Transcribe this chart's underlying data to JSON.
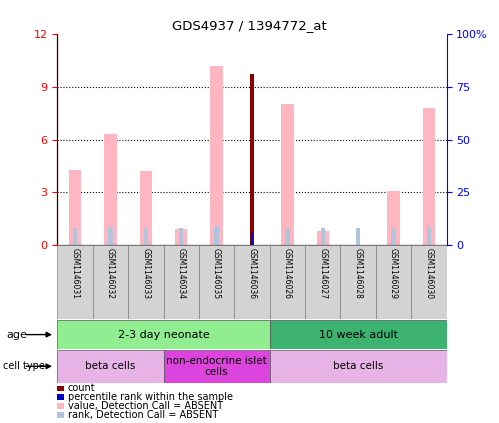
{
  "title": "GDS4937 / 1394772_at",
  "samples": [
    "GSM1146031",
    "GSM1146032",
    "GSM1146033",
    "GSM1146034",
    "GSM1146035",
    "GSM1146036",
    "GSM1146026",
    "GSM1146027",
    "GSM1146028",
    "GSM1146029",
    "GSM1146030"
  ],
  "value_absent": [
    4.3,
    6.3,
    4.2,
    0.9,
    10.2,
    null,
    8.0,
    0.8,
    null,
    3.1,
    7.8
  ],
  "rank_absent": [
    8.0,
    8.5,
    8.0,
    8.0,
    9.0,
    null,
    8.0,
    8.0,
    8.0,
    8.0,
    8.5
  ],
  "count": [
    null,
    null,
    null,
    null,
    null,
    9.7,
    null,
    null,
    null,
    null,
    null
  ],
  "percentile_rank": [
    null,
    null,
    null,
    null,
    null,
    5.8,
    null,
    null,
    null,
    null,
    null
  ],
  "value_absent_present": [
    null,
    null,
    null,
    null,
    null,
    9.7,
    null,
    null,
    null,
    null,
    null
  ],
  "ylim_left": [
    0,
    12
  ],
  "ylim_right": [
    0,
    100
  ],
  "yticks_left": [
    0,
    3,
    6,
    9,
    12
  ],
  "ytick_labels_left": [
    "0",
    "3",
    "6",
    "9",
    "12"
  ],
  "yticks_right": [
    0,
    25,
    50,
    75,
    100
  ],
  "ytick_labels_right": [
    "0",
    "25",
    "50",
    "75",
    "100%"
  ],
  "age_groups": [
    {
      "label": "2-3 day neonate",
      "start": 0,
      "end": 6,
      "color": "#90ee90"
    },
    {
      "label": "10 week adult",
      "start": 6,
      "end": 11,
      "color": "#3cb371"
    }
  ],
  "cell_groups": [
    {
      "label": "beta cells",
      "start": 0,
      "end": 3,
      "color": "#e8b4e8"
    },
    {
      "label": "non-endocrine islet\ncells",
      "start": 3,
      "end": 6,
      "color": "#dd44dd"
    },
    {
      "label": "beta cells",
      "start": 6,
      "end": 11,
      "color": "#e8b4e8"
    }
  ],
  "color_value_absent": "#ffb6c1",
  "color_rank_absent": "#b0c4de",
  "color_count": "#8b0000",
  "color_percentile": "#0000cd",
  "legend_items": [
    {
      "label": "count",
      "color": "#8b0000"
    },
    {
      "label": "percentile rank within the sample",
      "color": "#0000cd"
    },
    {
      "label": "value, Detection Call = ABSENT",
      "color": "#ffb6c1"
    },
    {
      "label": "rank, Detection Call = ABSENT",
      "color": "#b0c4de"
    }
  ],
  "background_color": "#ffffff",
  "sample_bg_color": "#d3d3d3",
  "sample_border_color": "#808080"
}
